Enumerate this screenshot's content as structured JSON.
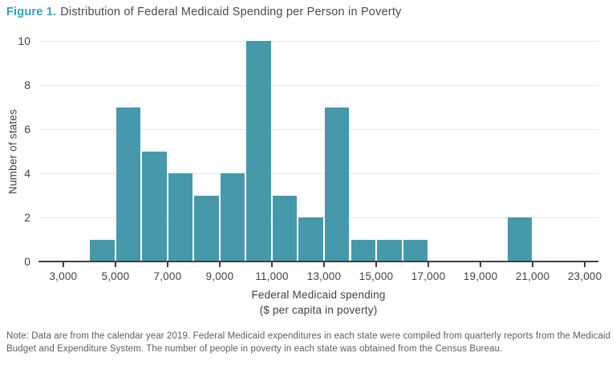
{
  "title": {
    "prefix": "Figure 1.",
    "text": "Distribution of Federal Medicaid Spending per Person in Poverty"
  },
  "colors": {
    "bar": "#4699ab",
    "accent": "#31a0ba",
    "axis_line": "#3c4044",
    "gridline": "#e7e8e9",
    "axis_text": "#3e4348",
    "note_text": "#595d62"
  },
  "chart_data": {
    "type": "bar",
    "title": "Distribution of Federal Medicaid Spending per Person in Poverty",
    "xlabel": "Federal Medicaid spending",
    "xlabel2": "($ per capita in poverty)",
    "ylabel": "Number of states",
    "bin_width": 1000,
    "bins": [
      {
        "x0": 4000,
        "count": 1
      },
      {
        "x0": 5000,
        "count": 7
      },
      {
        "x0": 6000,
        "count": 5
      },
      {
        "x0": 7000,
        "count": 4
      },
      {
        "x0": 8000,
        "count": 3
      },
      {
        "x0": 9000,
        "count": 4
      },
      {
        "x0": 10000,
        "count": 10
      },
      {
        "x0": 11000,
        "count": 3
      },
      {
        "x0": 12000,
        "count": 2
      },
      {
        "x0": 13000,
        "count": 7
      },
      {
        "x0": 14000,
        "count": 1
      },
      {
        "x0": 15000,
        "count": 1
      },
      {
        "x0": 16000,
        "count": 1
      },
      {
        "x0": 17000,
        "count": 0
      },
      {
        "x0": 18000,
        "count": 0
      },
      {
        "x0": 19000,
        "count": 0
      },
      {
        "x0": 20000,
        "count": 2
      }
    ],
    "x_ticks": [
      {
        "value": 3000,
        "label": "3,000"
      },
      {
        "value": 5000,
        "label": "5,000"
      },
      {
        "value": 7000,
        "label": "7,000"
      },
      {
        "value": 9000,
        "label": "9,000"
      },
      {
        "value": 11000,
        "label": "11,000"
      },
      {
        "value": 13000,
        "label": "13,000"
      },
      {
        "value": 15000,
        "label": "15,000"
      },
      {
        "value": 17000,
        "label": "17,000"
      },
      {
        "value": 19000,
        "label": "19,000"
      },
      {
        "value": 21000,
        "label": "21,000"
      },
      {
        "value": 23000,
        "label": "23,000"
      }
    ],
    "y_ticks": [
      0,
      2,
      4,
      6,
      8,
      10
    ],
    "xlim": [
      2050,
      23520
    ],
    "ylim": [
      0,
      10
    ],
    "grid": "horizontal",
    "legend": "none"
  },
  "note": {
    "line1": "Note: Data are from the calendar year 2019. Federal Medicaid expenditures in each state were compiled from quarterly reports from the Medicaid",
    "line2": "Budget and Expenditure System. The number of people in poverty in each state was obtained from the Census Bureau."
  }
}
